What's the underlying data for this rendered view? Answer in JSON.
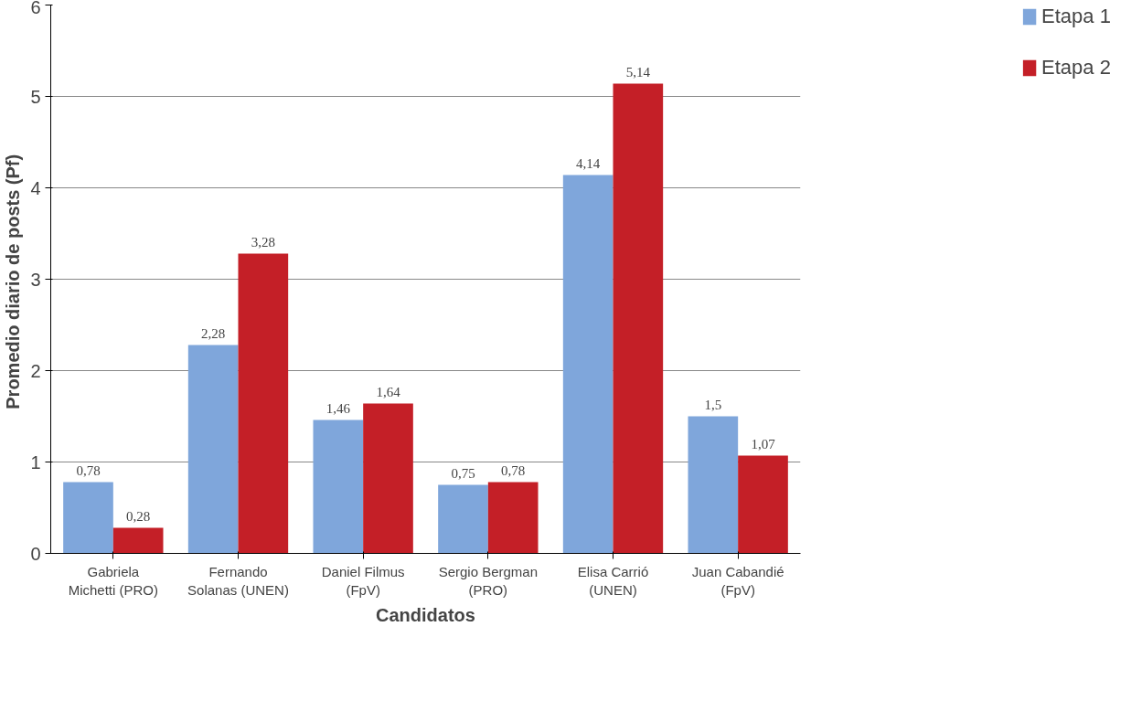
{
  "chart_data": {
    "type": "bar",
    "xlabel": "Candidatos",
    "ylabel": "Promedio diario de posts  (Pf)",
    "categories": [
      "Gabriela Michetti (PRO)",
      "Fernando Solanas (UNEN)",
      "Daniel Filmus (FpV)",
      "Sergio Bergman (PRO)",
      "Elisa Carrió (UNEN)",
      "Juan Cabandié (FpV)"
    ],
    "series": [
      {
        "name": "Etapa 1",
        "color": "#7fa6db",
        "values": [
          0.78,
          2.28,
          1.46,
          0.75,
          4.14,
          1.5
        ],
        "value_labels": [
          "0,78",
          "2,28",
          "1,46",
          "0,75",
          "4,14",
          "1,5"
        ]
      },
      {
        "name": "Etapa 2",
        "color": "#c41f27",
        "values": [
          0.28,
          3.28,
          1.64,
          0.78,
          5.14,
          1.07
        ],
        "value_labels": [
          "0,28",
          "3,28",
          "1,64",
          "0,78",
          "5,14",
          "1,07"
        ]
      }
    ],
    "ylim": [
      0,
      6
    ],
    "yticks": [
      0,
      1,
      2,
      3,
      4,
      5,
      6
    ],
    "grid": "y",
    "legend": "right"
  }
}
